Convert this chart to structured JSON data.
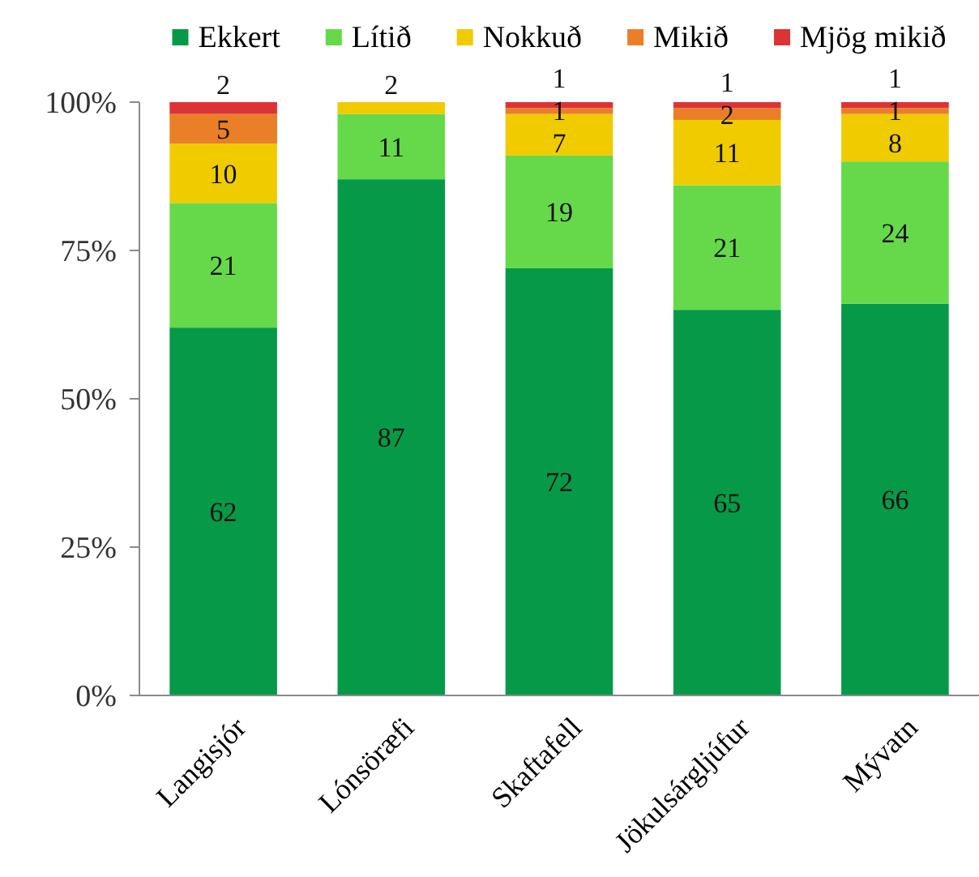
{
  "chart_data": {
    "type": "bar",
    "categories": [
      "Langisjór",
      "Lónsöræfi",
      "Skaftafell",
      "Jökulsárgljúfur",
      "Mývatn"
    ],
    "series": [
      {
        "name": "Ekkert",
        "color": "#069a48",
        "values": [
          62,
          87,
          72,
          65,
          66
        ]
      },
      {
        "name": "Lítið",
        "color": "#66d94a",
        "values": [
          21,
          11,
          19,
          21,
          24
        ]
      },
      {
        "name": "Nokkuð",
        "color": "#f0cb00",
        "values": [
          10,
          2,
          7,
          11,
          8
        ]
      },
      {
        "name": "Mikið",
        "color": "#ea7f27",
        "values": [
          5,
          null,
          1,
          2,
          1
        ]
      },
      {
        "name": "Mjög mikið",
        "color": "#dc3434",
        "values": [
          2,
          null,
          1,
          1,
          1
        ]
      }
    ],
    "stacked": true,
    "ylim": [
      0,
      100
    ],
    "yticks": [
      {
        "value": 0,
        "label": "0%"
      },
      {
        "value": 25,
        "label": "25%"
      },
      {
        "value": 50,
        "label": "50%"
      },
      {
        "value": 75,
        "label": "75%"
      },
      {
        "value": 100,
        "label": "100%"
      }
    ],
    "legend": "top",
    "data_labels": true
  }
}
